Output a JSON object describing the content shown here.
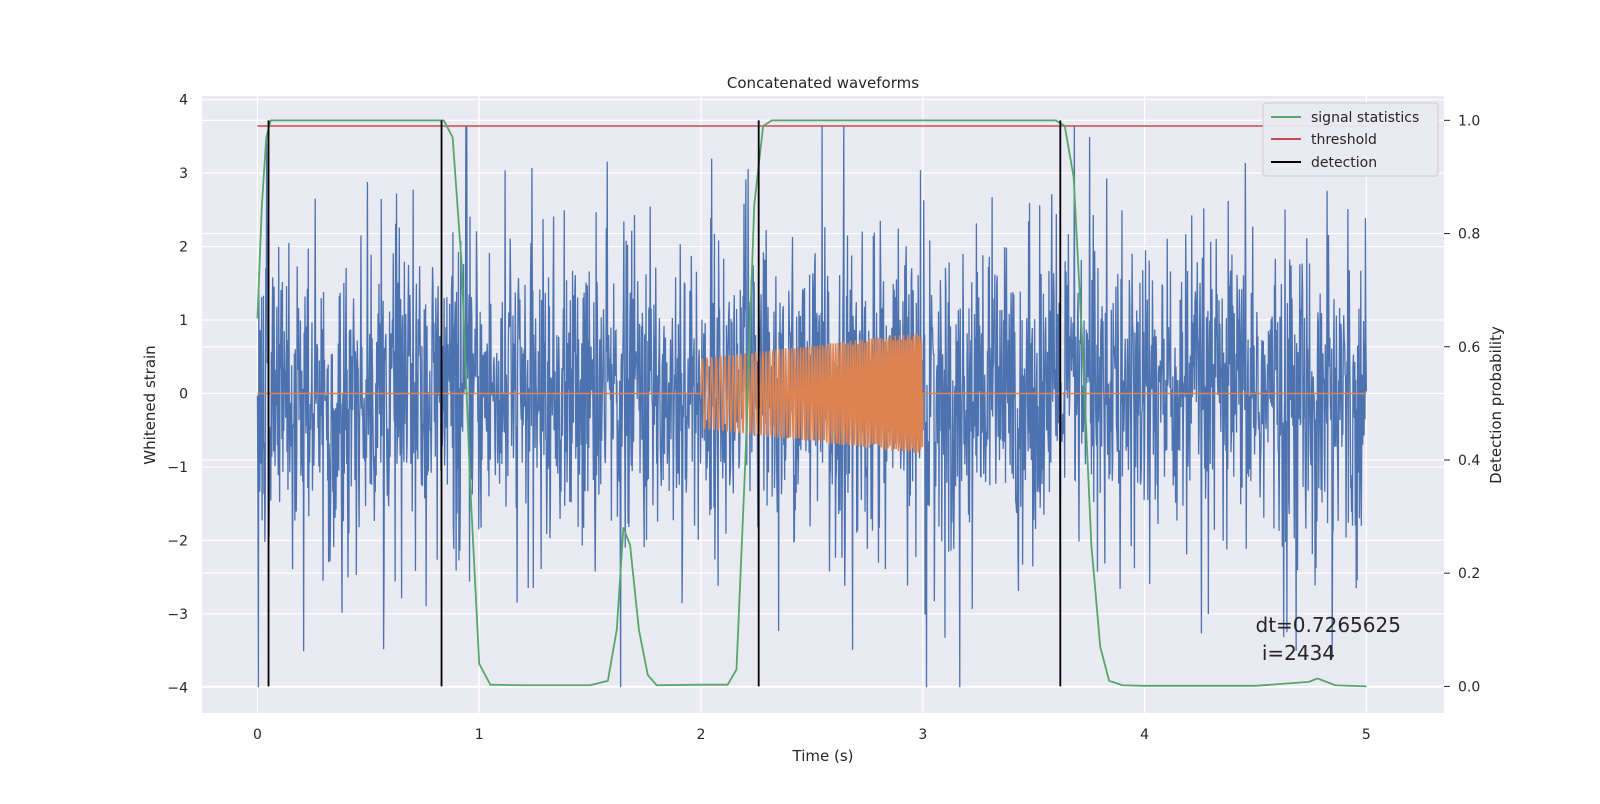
{
  "chart_data": {
    "type": "line",
    "title": "Concatenated waveforms",
    "xlabel": "Time (s)",
    "ylabel": "Whitened strain",
    "y2label": "Detection probability",
    "xlim": [
      -0.25,
      5.35
    ],
    "ylim": [
      -4.35,
      4.05
    ],
    "y2lim": [
      -0.047,
      1.043
    ],
    "xticks": [
      0,
      1,
      2,
      3,
      4,
      5
    ],
    "yticks": [
      -4,
      -3,
      -2,
      -1,
      0,
      1,
      2,
      3,
      4
    ],
    "y2ticks": [
      0.0,
      0.2,
      0.4,
      0.6,
      0.8,
      1.0
    ],
    "y2ticklabels": [
      "0.0",
      "0.2",
      "0.4",
      "0.6",
      "0.8",
      "1.0"
    ],
    "grid": true,
    "legend_position": "top-right",
    "colors": {
      "strain": "#4c72b0",
      "waveform": "#dd8452",
      "signal_statistics": "#55a868",
      "threshold": "#c44e52",
      "detection": "#000000",
      "background": "#eaeaf2",
      "grid": "#ffffff"
    },
    "legend": [
      "signal statistics",
      "threshold",
      "detection"
    ],
    "strain_series": {
      "x_range": [
        0,
        5
      ],
      "amplitude_envelope": 3.6,
      "min_observed": -4.0,
      "max_observed": 3.65
    },
    "waveform_series": {
      "x_start": 2.0,
      "x_end": 3.0,
      "amplitude_start": 0.48,
      "amplitude_end": 0.83,
      "zero_before_after": 0
    },
    "signal_statistics": {
      "x": [
        0.0,
        0.02,
        0.04,
        0.06,
        0.1,
        0.5,
        0.8,
        0.84,
        0.88,
        0.92,
        0.96,
        1.0,
        1.05,
        1.2,
        1.5,
        1.58,
        1.62,
        1.65,
        1.68,
        1.72,
        1.76,
        1.8,
        2.0,
        2.12,
        2.16,
        2.2,
        2.24,
        2.28,
        2.32,
        2.5,
        3.0,
        3.6,
        3.64,
        3.68,
        3.72,
        3.76,
        3.8,
        3.84,
        3.9,
        4.0,
        4.5,
        4.74,
        4.78,
        4.82,
        4.86,
        5.0
      ],
      "y": [
        0.65,
        0.85,
        0.97,
        1.0,
        1.0,
        1.0,
        1.0,
        1.0,
        0.97,
        0.75,
        0.35,
        0.04,
        0.003,
        0.002,
        0.002,
        0.01,
        0.1,
        0.28,
        0.25,
        0.1,
        0.02,
        0.002,
        0.003,
        0.003,
        0.03,
        0.4,
        0.85,
        0.99,
        1.0,
        1.0,
        1.0,
        1.0,
        0.99,
        0.9,
        0.6,
        0.25,
        0.07,
        0.01,
        0.002,
        0.001,
        0.001,
        0.008,
        0.014,
        0.008,
        0.002,
        0.0
      ]
    },
    "threshold": {
      "value": 0.99,
      "x_range": [
        0,
        5
      ]
    },
    "detections": [
      0.05,
      0.83,
      2.26,
      3.62
    ],
    "detection_range": [
      0.0,
      1.0
    ],
    "annotation": {
      "line1": "dt=0.7265625",
      "line2": " i=2434",
      "x": 4.5,
      "y": -3.25
    }
  }
}
